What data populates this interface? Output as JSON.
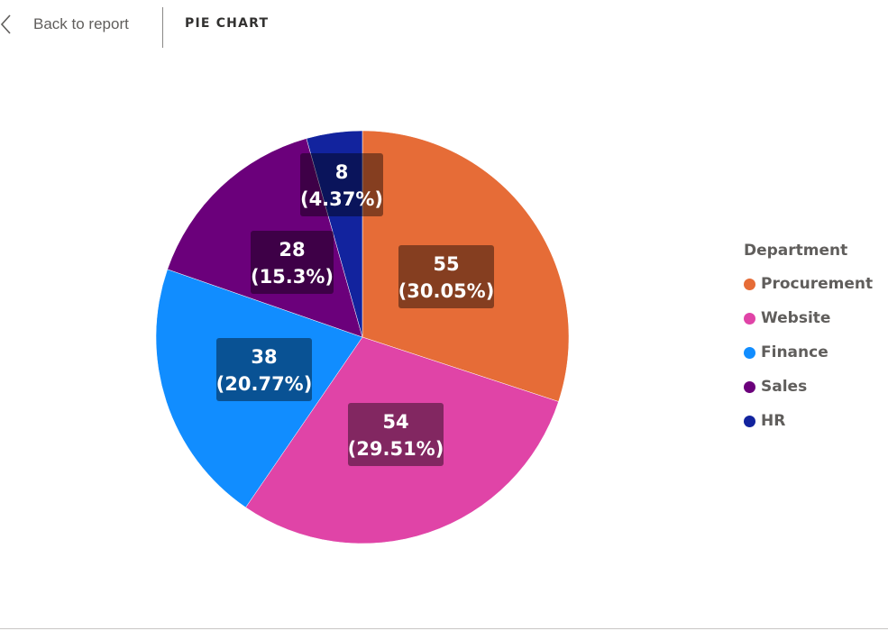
{
  "header": {
    "back_label": "Back to report",
    "title": "PIE CHART"
  },
  "legend": {
    "title": "Department"
  },
  "chart_data": {
    "type": "pie",
    "title": "",
    "legend_title": "Department",
    "legend_position": "right",
    "slices": [
      {
        "label": "Procurement",
        "value": 55,
        "percent_label": "(30.05%)",
        "color": "#e66c37"
      },
      {
        "label": "Website",
        "value": 54,
        "percent_label": "(29.51%)",
        "color": "#e044a7"
      },
      {
        "label": "Finance",
        "value": 38,
        "percent_label": "(20.77%)",
        "color": "#118dff"
      },
      {
        "label": "Sales",
        "value": 28,
        "percent_label": "(15.3%)",
        "color": "#6b007b"
      },
      {
        "label": "HR",
        "value": 8,
        "percent_label": "(4.37%)",
        "color": "#12239e"
      }
    ]
  }
}
